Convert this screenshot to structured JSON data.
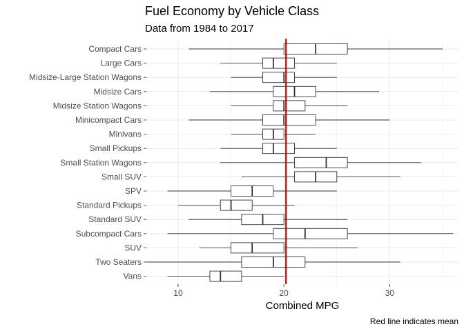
{
  "title": "Fuel Economy by Vehicle Class",
  "subtitle": "Data from 1984 to 2017",
  "caption": "Red line indicates mean",
  "chart_data": {
    "type": "boxplot",
    "orientation": "horizontal",
    "xlabel": "Combined MPG",
    "ylabel": "",
    "xlim": [
      7,
      36.5
    ],
    "xticks": [
      10,
      20,
      30
    ],
    "grid": true,
    "mean_line": {
      "value": 20.2,
      "color": "#cc0000",
      "label": "Red line indicates mean"
    },
    "categories": [
      "Compact Cars",
      "Large Cars",
      "Midsize-Large Station Wagons",
      "Midsize Cars",
      "Midsize Station Wagons",
      "Minicompact Cars",
      "Minivans",
      "Small Pickups",
      "Small Station Wagons",
      "Small SUV",
      "SPV",
      "Standard Pickups",
      "Standard SUV",
      "Subcompact Cars",
      "SUV",
      "Two Seaters",
      "Vans"
    ],
    "boxes": [
      {
        "category": "Compact Cars",
        "min": 11,
        "q1": 20,
        "median": 23,
        "q3": 26,
        "max": 35
      },
      {
        "category": "Large Cars",
        "min": 14,
        "q1": 18,
        "median": 19,
        "q3": 21,
        "max": 25
      },
      {
        "category": "Midsize-Large Station Wagons",
        "min": 15,
        "q1": 18,
        "median": 20,
        "q3": 21,
        "max": 25
      },
      {
        "category": "Midsize Cars",
        "min": 13,
        "q1": 19,
        "median": 21,
        "q3": 23,
        "max": 29
      },
      {
        "category": "Midsize Station Wagons",
        "min": 15,
        "q1": 19,
        "median": 20,
        "q3": 22,
        "max": 26
      },
      {
        "category": "Minicompact Cars",
        "min": 11,
        "q1": 18,
        "median": 20,
        "q3": 23,
        "max": 30
      },
      {
        "category": "Minivans",
        "min": 15,
        "q1": 18,
        "median": 19,
        "q3": 20,
        "max": 23
      },
      {
        "category": "Small Pickups",
        "min": 14,
        "q1": 18,
        "median": 19,
        "q3": 21,
        "max": 25
      },
      {
        "category": "Small Station Wagons",
        "min": 14,
        "q1": 21,
        "median": 24,
        "q3": 26,
        "max": 33
      },
      {
        "category": "Small SUV",
        "min": 16,
        "q1": 21,
        "median": 23,
        "q3": 25,
        "max": 31
      },
      {
        "category": "SPV",
        "min": 9,
        "q1": 15,
        "median": 17,
        "q3": 19,
        "max": 25
      },
      {
        "category": "Standard Pickups",
        "min": 10,
        "q1": 14,
        "median": 15,
        "q3": 17,
        "max": 21
      },
      {
        "category": "Standard SUV",
        "min": 11,
        "q1": 16,
        "median": 18,
        "q3": 20,
        "max": 26
      },
      {
        "category": "Subcompact Cars",
        "min": 9,
        "q1": 19,
        "median": 22,
        "q3": 26,
        "max": 36
      },
      {
        "category": "SUV",
        "min": 12,
        "q1": 15,
        "median": 17,
        "q3": 20,
        "max": 27
      },
      {
        "category": "Two Seaters",
        "min": 7,
        "q1": 16,
        "median": 19,
        "q3": 22,
        "max": 31
      },
      {
        "category": "Vans",
        "min": 9,
        "q1": 13,
        "median": 14,
        "q3": 16,
        "max": 20
      }
    ]
  }
}
